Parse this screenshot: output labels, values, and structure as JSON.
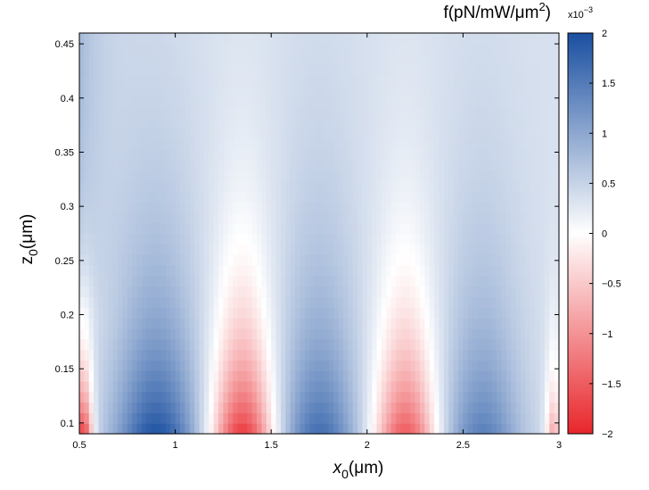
{
  "chart_data": {
    "type": "heatmap",
    "title": "",
    "xlabel": {
      "base": "x",
      "sub": "0",
      "unit": "(μm)"
    },
    "ylabel": {
      "base": "z",
      "sub": "0",
      "unit": "(μm)"
    },
    "xlim": [
      0.5,
      3
    ],
    "ylim": [
      0.09,
      0.46
    ],
    "x_ticks": [
      0.5,
      1,
      1.5,
      2,
      2.5,
      3
    ],
    "x_tick_labels": [
      "0.5",
      "1",
      "1.5",
      "2",
      "2.5",
      "3"
    ],
    "y_ticks": [
      0.1,
      0.15,
      0.2,
      0.25,
      0.3,
      0.35,
      0.4,
      0.45
    ],
    "y_tick_labels": [
      "0.1",
      "0.15",
      "0.2",
      "0.25",
      "0.3",
      "0.35",
      "0.4",
      "0.45"
    ],
    "colorbar": {
      "title_main": "f(pN/mW/μm",
      "title_sup": "2",
      "title_end": ")",
      "exponent_base": "x10",
      "exponent_power": "−3",
      "range": [
        -2,
        2
      ],
      "ticks": [
        2,
        1.5,
        1,
        0.5,
        0,
        -0.5,
        -1,
        -1.5,
        -2
      ],
      "tick_labels": [
        "2",
        "1.5",
        "1",
        "0.5",
        "0",
        "−0.5",
        "−1",
        "−1.5",
        "−2"
      ],
      "colormap": [
        {
          "value": -2,
          "color": "#e8262b"
        },
        {
          "value": 0,
          "color": "#ffffff"
        },
        {
          "value": 2,
          "color": "#1a4fa0"
        }
      ]
    },
    "grid": false,
    "approximate_field": {
      "grid_resolution": [
        100,
        38
      ],
      "components": [
        {
          "x_center": 0.9,
          "z_decay": 0.12,
          "z_min": 0.09,
          "width": 0.22,
          "amplitude": 1.6
        },
        {
          "x_center": 1.35,
          "z_decay": 0.1,
          "z_min": 0.09,
          "width": 0.16,
          "amplitude": -2.2
        },
        {
          "x_center": 1.75,
          "z_decay": 0.12,
          "z_min": 0.09,
          "width": 0.2,
          "amplitude": 1.3
        },
        {
          "x_center": 2.2,
          "z_decay": 0.1,
          "z_min": 0.09,
          "width": 0.16,
          "amplitude": -1.9
        },
        {
          "x_center": 2.6,
          "z_decay": 0.12,
          "z_min": 0.09,
          "width": 0.2,
          "amplitude": 1.1
        },
        {
          "x_center": 0.52,
          "z_decay": 0.06,
          "z_min": 0.09,
          "width": 0.05,
          "amplitude": -2.2
        },
        {
          "x_center": 2.97,
          "z_decay": 0.06,
          "z_min": 0.09,
          "width": 0.04,
          "amplitude": -1.2
        }
      ],
      "background": 0.35,
      "left_edge_boost": 0.5
    }
  }
}
